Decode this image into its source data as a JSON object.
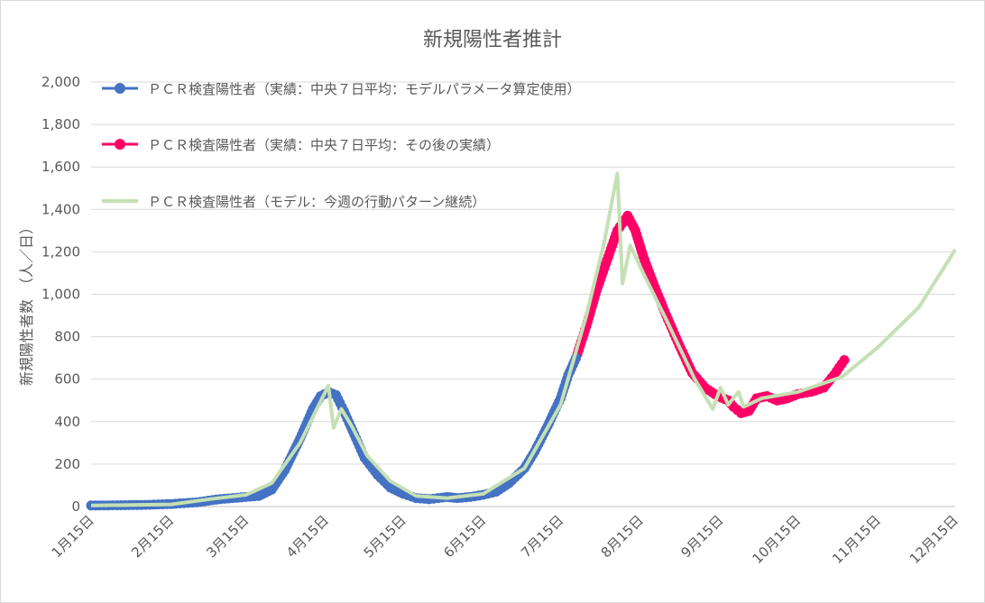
{
  "chart_data": {
    "type": "line",
    "title": "新規陽性者推計",
    "ylabel": "新規陽性者数　（人／日）",
    "xlabel": "",
    "ylim": [
      0,
      2000
    ],
    "yticks": [
      0,
      200,
      400,
      600,
      800,
      1000,
      1200,
      1400,
      1600,
      1800,
      2000
    ],
    "ytick_labels": [
      "0",
      "200",
      "400",
      "600",
      "800",
      "1,000",
      "1,200",
      "1,400",
      "1,600",
      "1,800",
      "2,000"
    ],
    "xlim": [
      "1月15日",
      "12月15日"
    ],
    "xtick_labels": [
      "1月15日",
      "2月15日",
      "3月15日",
      "4月15日",
      "5月15日",
      "6月15日",
      "7月15日",
      "8月15日",
      "9月15日",
      "10月15日",
      "11月15日",
      "12月15日"
    ],
    "grid": "horizontal",
    "legend_position": "top-left",
    "series": [
      {
        "name": "ＰＣＲ検査陽性者（実績：中央７日平均：モデルパラメータ算定使用）",
        "color": "#4472c4",
        "style": "line-markers",
        "points": [
          [
            "1月15日",
            5
          ],
          [
            "1月25日",
            6
          ],
          [
            "2月5日",
            8
          ],
          [
            "2月15日",
            12
          ],
          [
            "2月25日",
            20
          ],
          [
            "3月5日",
            35
          ],
          [
            "3月15日",
            45
          ],
          [
            "3月20日",
            50
          ],
          [
            "3月25日",
            80
          ],
          [
            "3月30日",
            170
          ],
          [
            "4月5日",
            320
          ],
          [
            "4月10日",
            460
          ],
          [
            "4月13日",
            520
          ],
          [
            "4月16日",
            540
          ],
          [
            "4月19日",
            525
          ],
          [
            "4月22日",
            450
          ],
          [
            "4月26日",
            340
          ],
          [
            "4月30日",
            230
          ],
          [
            "5月5日",
            150
          ],
          [
            "5月10日",
            90
          ],
          [
            "5月15日",
            60
          ],
          [
            "5月20日",
            40
          ],
          [
            "5月25日",
            35
          ],
          [
            "6月1日",
            45
          ],
          [
            "6月5日",
            40
          ],
          [
            "6月10日",
            45
          ],
          [
            "6月15日",
            55
          ],
          [
            "6月20日",
            70
          ],
          [
            "6月25日",
            110
          ],
          [
            "7月1日",
            180
          ],
          [
            "7月5日",
            260
          ],
          [
            "7月10日",
            380
          ],
          [
            "7月15日",
            510
          ],
          [
            "7月18日",
            620
          ],
          [
            "7月21日",
            700
          ]
        ]
      },
      {
        "name": "ＰＣＲ検査陽性者（実績：中央７日平均：その後の実績）",
        "color": "#ff0066",
        "style": "line-markers",
        "points": [
          [
            "7月21日",
            700
          ],
          [
            "7月25日",
            850
          ],
          [
            "7月29日",
            1020
          ],
          [
            "8月2日",
            1160
          ],
          [
            "8月6日",
            1300
          ],
          [
            "8月10日",
            1370
          ],
          [
            "8月13日",
            1300
          ],
          [
            "8月16日",
            1180
          ],
          [
            "8月20日",
            1050
          ],
          [
            "8月25日",
            900
          ],
          [
            "8月30日",
            760
          ],
          [
            "9月4日",
            630
          ],
          [
            "9月9日",
            560
          ],
          [
            "9月14日",
            520
          ],
          [
            "9月18日",
            500
          ],
          [
            "9月20日",
            470
          ],
          [
            "9月23日",
            440
          ],
          [
            "9月26日",
            450
          ],
          [
            "9月29日",
            510
          ],
          [
            "10月3日",
            520
          ],
          [
            "10月7日",
            500
          ],
          [
            "10月11日",
            510
          ],
          [
            "10月15日",
            530
          ],
          [
            "10月20日",
            540
          ],
          [
            "10月25日",
            560
          ],
          [
            "10月29日",
            620
          ],
          [
            "11月2日",
            690
          ]
        ]
      },
      {
        "name": "ＰＣＲ検査陽性者（モデル：今週の行動パターン継続）",
        "color": "#c5e0b4",
        "style": "line",
        "points": [
          [
            "1月15日",
            5
          ],
          [
            "2月15日",
            10
          ],
          [
            "3月1日",
            35
          ],
          [
            "3月15日",
            55
          ],
          [
            "3月25日",
            110
          ],
          [
            "4月5日",
            300
          ],
          [
            "4月16日",
            570
          ],
          [
            "4月18日",
            370
          ],
          [
            "4月21日",
            460
          ],
          [
            "4月25日",
            380
          ],
          [
            "5月1日",
            240
          ],
          [
            "5月10日",
            120
          ],
          [
            "5月20日",
            50
          ],
          [
            "6月1日",
            40
          ],
          [
            "6月15日",
            60
          ],
          [
            "7月1日",
            180
          ],
          [
            "7月15日",
            480
          ],
          [
            "7月25日",
            900
          ],
          [
            "8月1日",
            1250
          ],
          [
            "8月6日",
            1570
          ],
          [
            "8月8日",
            1050
          ],
          [
            "8月11日",
            1230
          ],
          [
            "8月16日",
            1100
          ],
          [
            "8月25日",
            880
          ],
          [
            "9月5日",
            600
          ],
          [
            "9月12日",
            460
          ],
          [
            "9月15日",
            560
          ],
          [
            "9月18日",
            480
          ],
          [
            "9月22日",
            540
          ],
          [
            "9月24日",
            470
          ],
          [
            "10月1日",
            510
          ],
          [
            "10月15日",
            540
          ],
          [
            "11月1日",
            610
          ],
          [
            "11月15日",
            750
          ],
          [
            "12月1日",
            940
          ],
          [
            "12月15日",
            1210
          ]
        ]
      }
    ]
  }
}
